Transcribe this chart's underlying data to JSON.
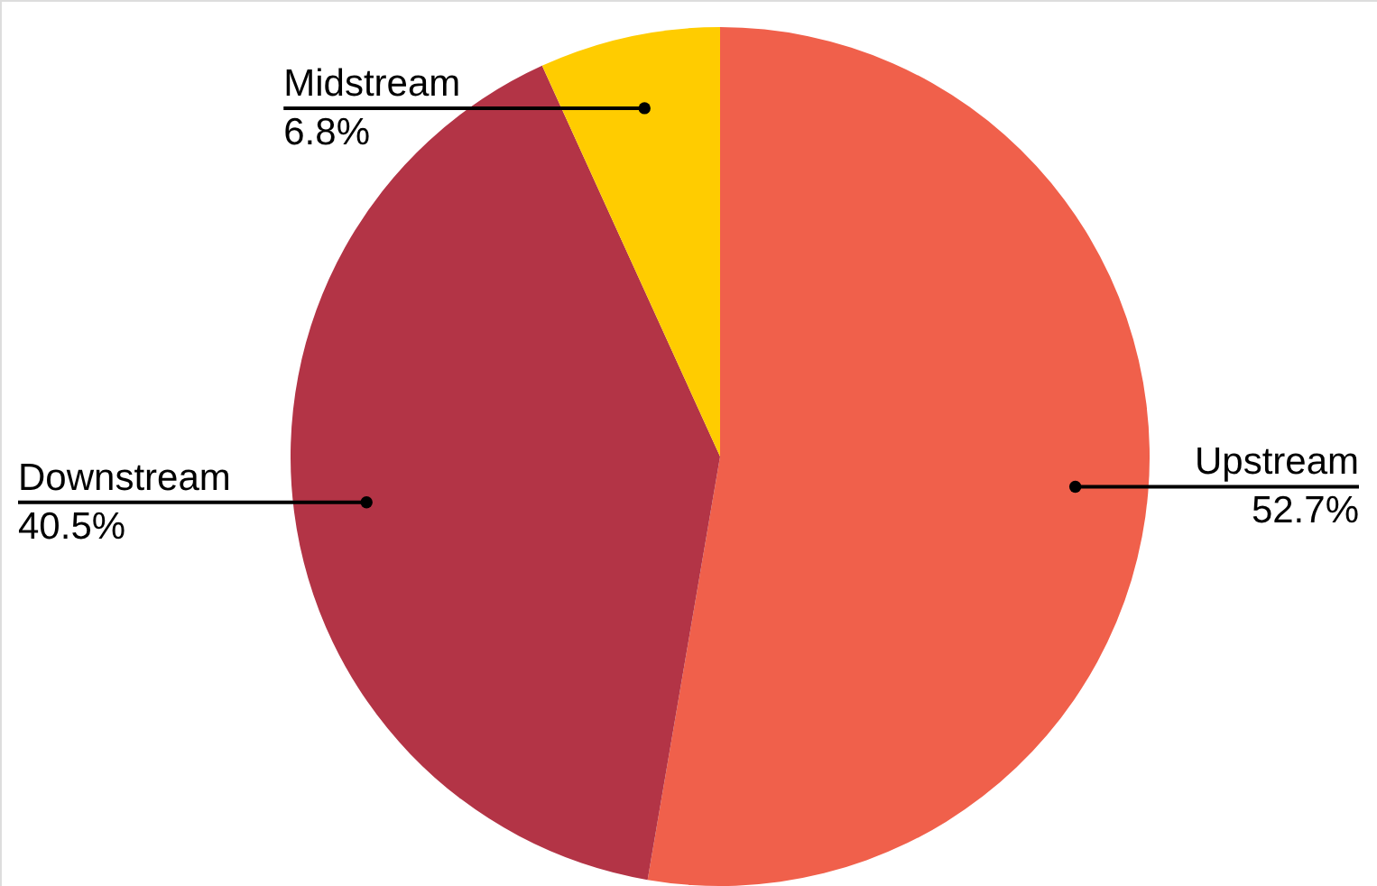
{
  "chart_data": {
    "type": "pie",
    "categories": [
      "Upstream",
      "Downstream",
      "Midstream"
    ],
    "values": [
      52.7,
      40.5,
      6.8
    ],
    "value_labels": [
      "52.7%",
      "40.5%",
      "6.8%"
    ],
    "colors": [
      "#f0604b",
      "#b33446",
      "#ffcc00"
    ]
  }
}
